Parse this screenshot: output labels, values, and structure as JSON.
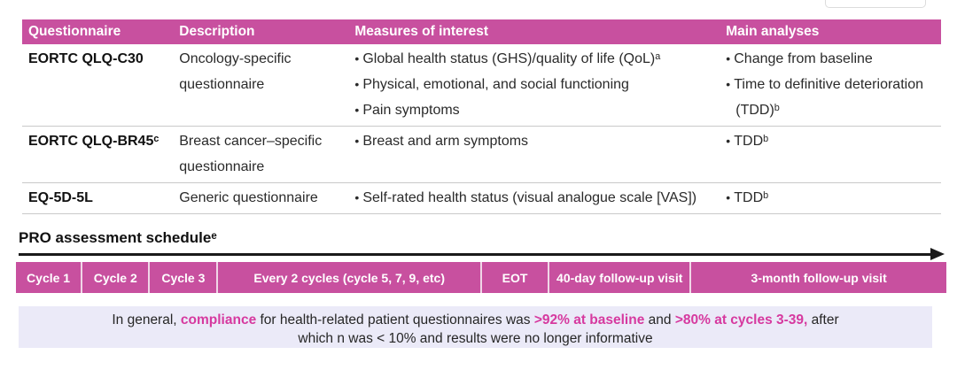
{
  "slide": {
    "table": {
      "headers": [
        "Questionnaire",
        "Description",
        "Measures of interest",
        "Main analyses"
      ],
      "rows": [
        {
          "questionnaire": "EORTC QLQ-C30",
          "description": "Oncology-specific questionnaire",
          "measures": [
            "Global health status (GHS)/quality of life (QoL)ᵃ",
            "Physical, emotional, and social functioning",
            "Pain symptoms"
          ],
          "analyses": [
            "Change from baseline",
            "Time to definitive deterioration (TDD)ᵇ"
          ]
        },
        {
          "questionnaire": "EORTC QLQ-BR45ᶜ",
          "description": "Breast cancer–specific questionnaire",
          "measures": [
            "Breast and arm symptoms"
          ],
          "analyses": [
            "TDDᵇ"
          ]
        },
        {
          "questionnaire": "EQ-5D-5L",
          "description": "Generic questionnaire",
          "measures": [
            "Self-rated health status (visual analogue scale [VAS])"
          ],
          "analyses": [
            "TDDᵇ"
          ]
        }
      ]
    },
    "schedule": {
      "title": "PRO assessment scheduleᵉ",
      "segments": [
        "Cycle 1",
        "Cycle 2",
        "Cycle 3",
        "Every 2 cycles (cycle 5, 7, 9, etc)",
        "EOT",
        "40-day follow-up visit",
        "3-month follow-up visit"
      ]
    },
    "note": {
      "segments": [
        "In general, ",
        "compliance",
        " for health-related patient questionnaires was ",
        ">92% at baseline",
        " and ",
        ">80% at cycles 3-39,",
        " after",
        "which n was < 10% and results were no longer informative"
      ]
    },
    "colors": {
      "accent_pink": "#c8509f",
      "highlight_pink": "#d6399f",
      "note_background": "#ebeaf8",
      "separator_gray": "#c9c9c9"
    }
  }
}
